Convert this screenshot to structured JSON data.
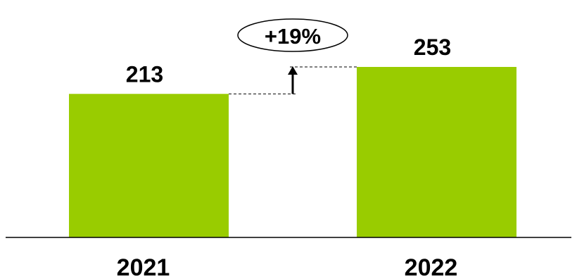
{
  "chart_data": {
    "type": "bar",
    "categories": [
      "2021",
      "2022"
    ],
    "values": [
      213,
      253
    ],
    "data_labels": [
      "213",
      "253"
    ],
    "ylim": [
      0,
      253
    ],
    "title": "",
    "xlabel": "",
    "ylabel": "",
    "grid": false,
    "bar_color": "#99cc00",
    "annotation": {
      "text": "+19%",
      "from_category": "2021",
      "to_category": "2022"
    }
  }
}
